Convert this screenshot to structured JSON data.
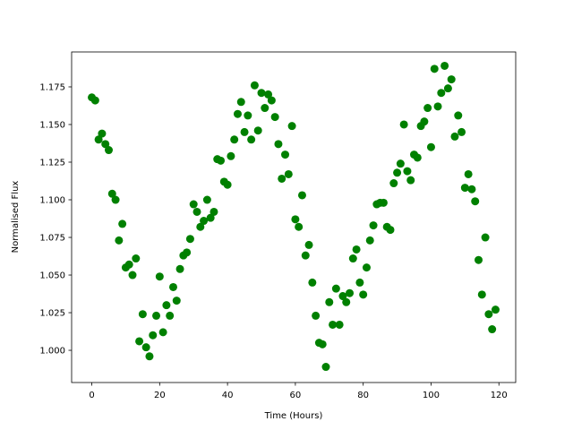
{
  "chart_data": {
    "type": "scatter",
    "x_label": "Time (Hours)",
    "y_label": "Normalised Flux",
    "x": [
      0,
      1,
      2,
      3,
      4,
      5,
      6,
      7,
      8,
      9,
      10,
      11,
      12,
      13,
      14,
      15,
      16,
      17,
      18,
      19,
      20,
      21,
      22,
      23,
      24,
      25,
      26,
      27,
      28,
      29,
      30,
      31,
      32,
      33,
      34,
      35,
      36,
      37,
      38,
      39,
      40,
      41,
      42,
      43,
      44,
      45,
      46,
      47,
      48,
      49,
      50,
      51,
      52,
      53,
      54,
      55,
      56,
      57,
      58,
      59,
      60,
      61,
      62,
      63,
      64,
      65,
      66,
      67,
      68,
      69,
      70,
      71,
      72,
      73,
      74,
      75,
      76,
      77,
      78,
      79,
      80,
      81,
      82,
      83,
      84,
      85,
      86,
      87,
      88,
      89,
      90,
      91,
      92,
      93,
      94,
      95,
      96,
      97,
      98,
      99,
      100,
      101,
      102,
      103,
      104,
      105,
      106,
      107,
      108,
      109,
      110,
      111,
      112,
      113,
      114,
      115,
      116,
      117,
      118,
      119
    ],
    "values": [
      1.168,
      1.166,
      1.14,
      1.144,
      1.137,
      1.133,
      1.104,
      1.1,
      1.073,
      1.084,
      1.055,
      1.057,
      1.05,
      1.061,
      1.006,
      1.024,
      1.002,
      0.996,
      1.01,
      1.023,
      1.049,
      1.012,
      1.03,
      1.023,
      1.042,
      1.033,
      1.054,
      1.063,
      1.065,
      1.074,
      1.097,
      1.092,
      1.082,
      1.086,
      1.1,
      1.088,
      1.092,
      1.127,
      1.126,
      1.112,
      1.11,
      1.129,
      1.14,
      1.157,
      1.165,
      1.145,
      1.156,
      1.14,
      1.176,
      1.146,
      1.171,
      1.161,
      1.17,
      1.166,
      1.155,
      1.137,
      1.114,
      1.13,
      1.117,
      1.149,
      1.087,
      1.082,
      1.103,
      1.063,
      1.07,
      1.045,
      1.023,
      1.005,
      1.004,
      0.989,
      1.032,
      1.017,
      1.041,
      1.017,
      1.036,
      1.032,
      1.038,
      1.061,
      1.067,
      1.045,
      1.037,
      1.055,
      1.073,
      1.083,
      1.097,
      1.098,
      1.098,
      1.082,
      1.08,
      1.111,
      1.118,
      1.124,
      1.15,
      1.119,
      1.113,
      1.13,
      1.128,
      1.149,
      1.152,
      1.161,
      1.135,
      1.187,
      1.162,
      1.171,
      1.189,
      1.174,
      1.18,
      1.142,
      1.156,
      1.145,
      1.108,
      1.117,
      1.107,
      1.099,
      1.06,
      1.037,
      1.075,
      1.024,
      1.014,
      1.027
    ],
    "color": "#008000",
    "xlim": [
      -5.95,
      124.95
    ],
    "xticks": [
      0,
      20,
      40,
      60,
      80,
      100,
      120
    ],
    "ylim": [
      0.9786,
      1.1982
    ],
    "yticks": [
      {
        "value": 1.0,
        "label": "1.000"
      },
      {
        "value": 1.025,
        "label": "1.025"
      },
      {
        "value": 1.05,
        "label": "1.050"
      },
      {
        "value": 1.075,
        "label": "1.075"
      },
      {
        "value": 1.1,
        "label": "1.100"
      },
      {
        "value": 1.125,
        "label": "1.125"
      },
      {
        "value": 1.15,
        "label": "1.150"
      },
      {
        "value": 1.175,
        "label": "1.175"
      }
    ],
    "grid": false
  }
}
